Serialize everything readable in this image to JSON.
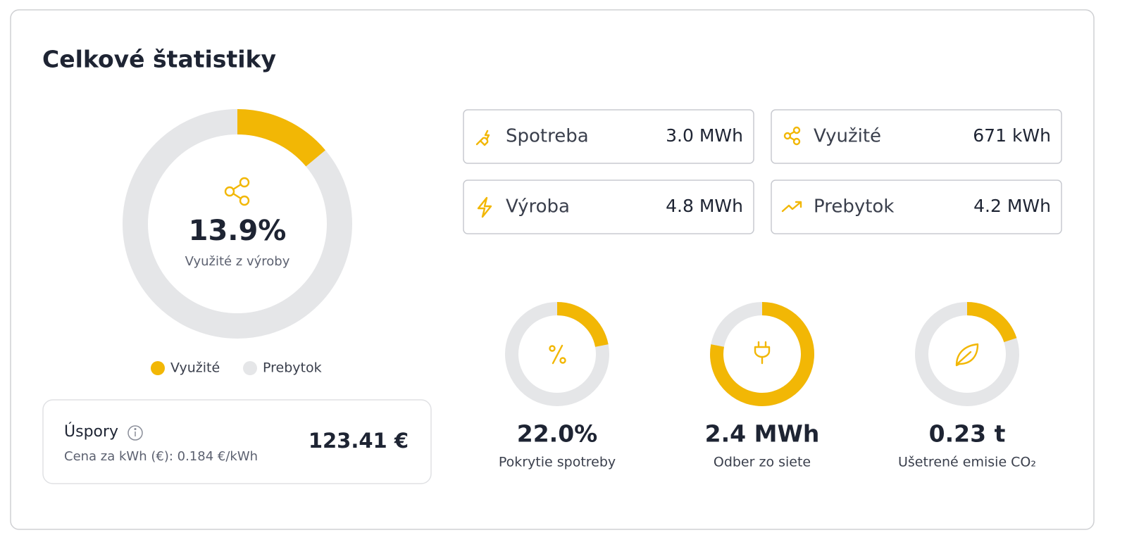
{
  "header": {
    "title": "Celkové štatistiky"
  },
  "main_donut": {
    "label": "13.9%",
    "caption": "Využité z výroby",
    "arc_percent": 13.9,
    "color": "#f2b705",
    "track_color": "#e5e6e8",
    "legend": [
      {
        "name": "Využité",
        "color": "#f2b705"
      },
      {
        "name": "Prebytok",
        "color": "#e5e6e8"
      }
    ]
  },
  "savings": {
    "title": "Úspory",
    "subtitle": "Cena za kWh (€): 0.184 €/kWh",
    "amount": "123.41 €"
  },
  "stat_cards": [
    {
      "label": "Spotreba",
      "value": "3.0 MWh"
    },
    {
      "label": "Využité",
      "value": "671 kWh"
    },
    {
      "label": "Výroba",
      "value": "4.8 MWh"
    },
    {
      "label": "Prebytok",
      "value": "4.2 MWh"
    }
  ],
  "small_donuts": [
    {
      "label": "22.0%",
      "caption": "Pokrytie spotreby",
      "arc_percent": 22.0
    },
    {
      "label": "2.4 MWh",
      "caption": "Odber zo siete",
      "arc_percent": 78
    },
    {
      "label": "0.23 t",
      "caption": "Ušetrené emisie CO₂",
      "arc_percent": 20
    }
  ]
}
